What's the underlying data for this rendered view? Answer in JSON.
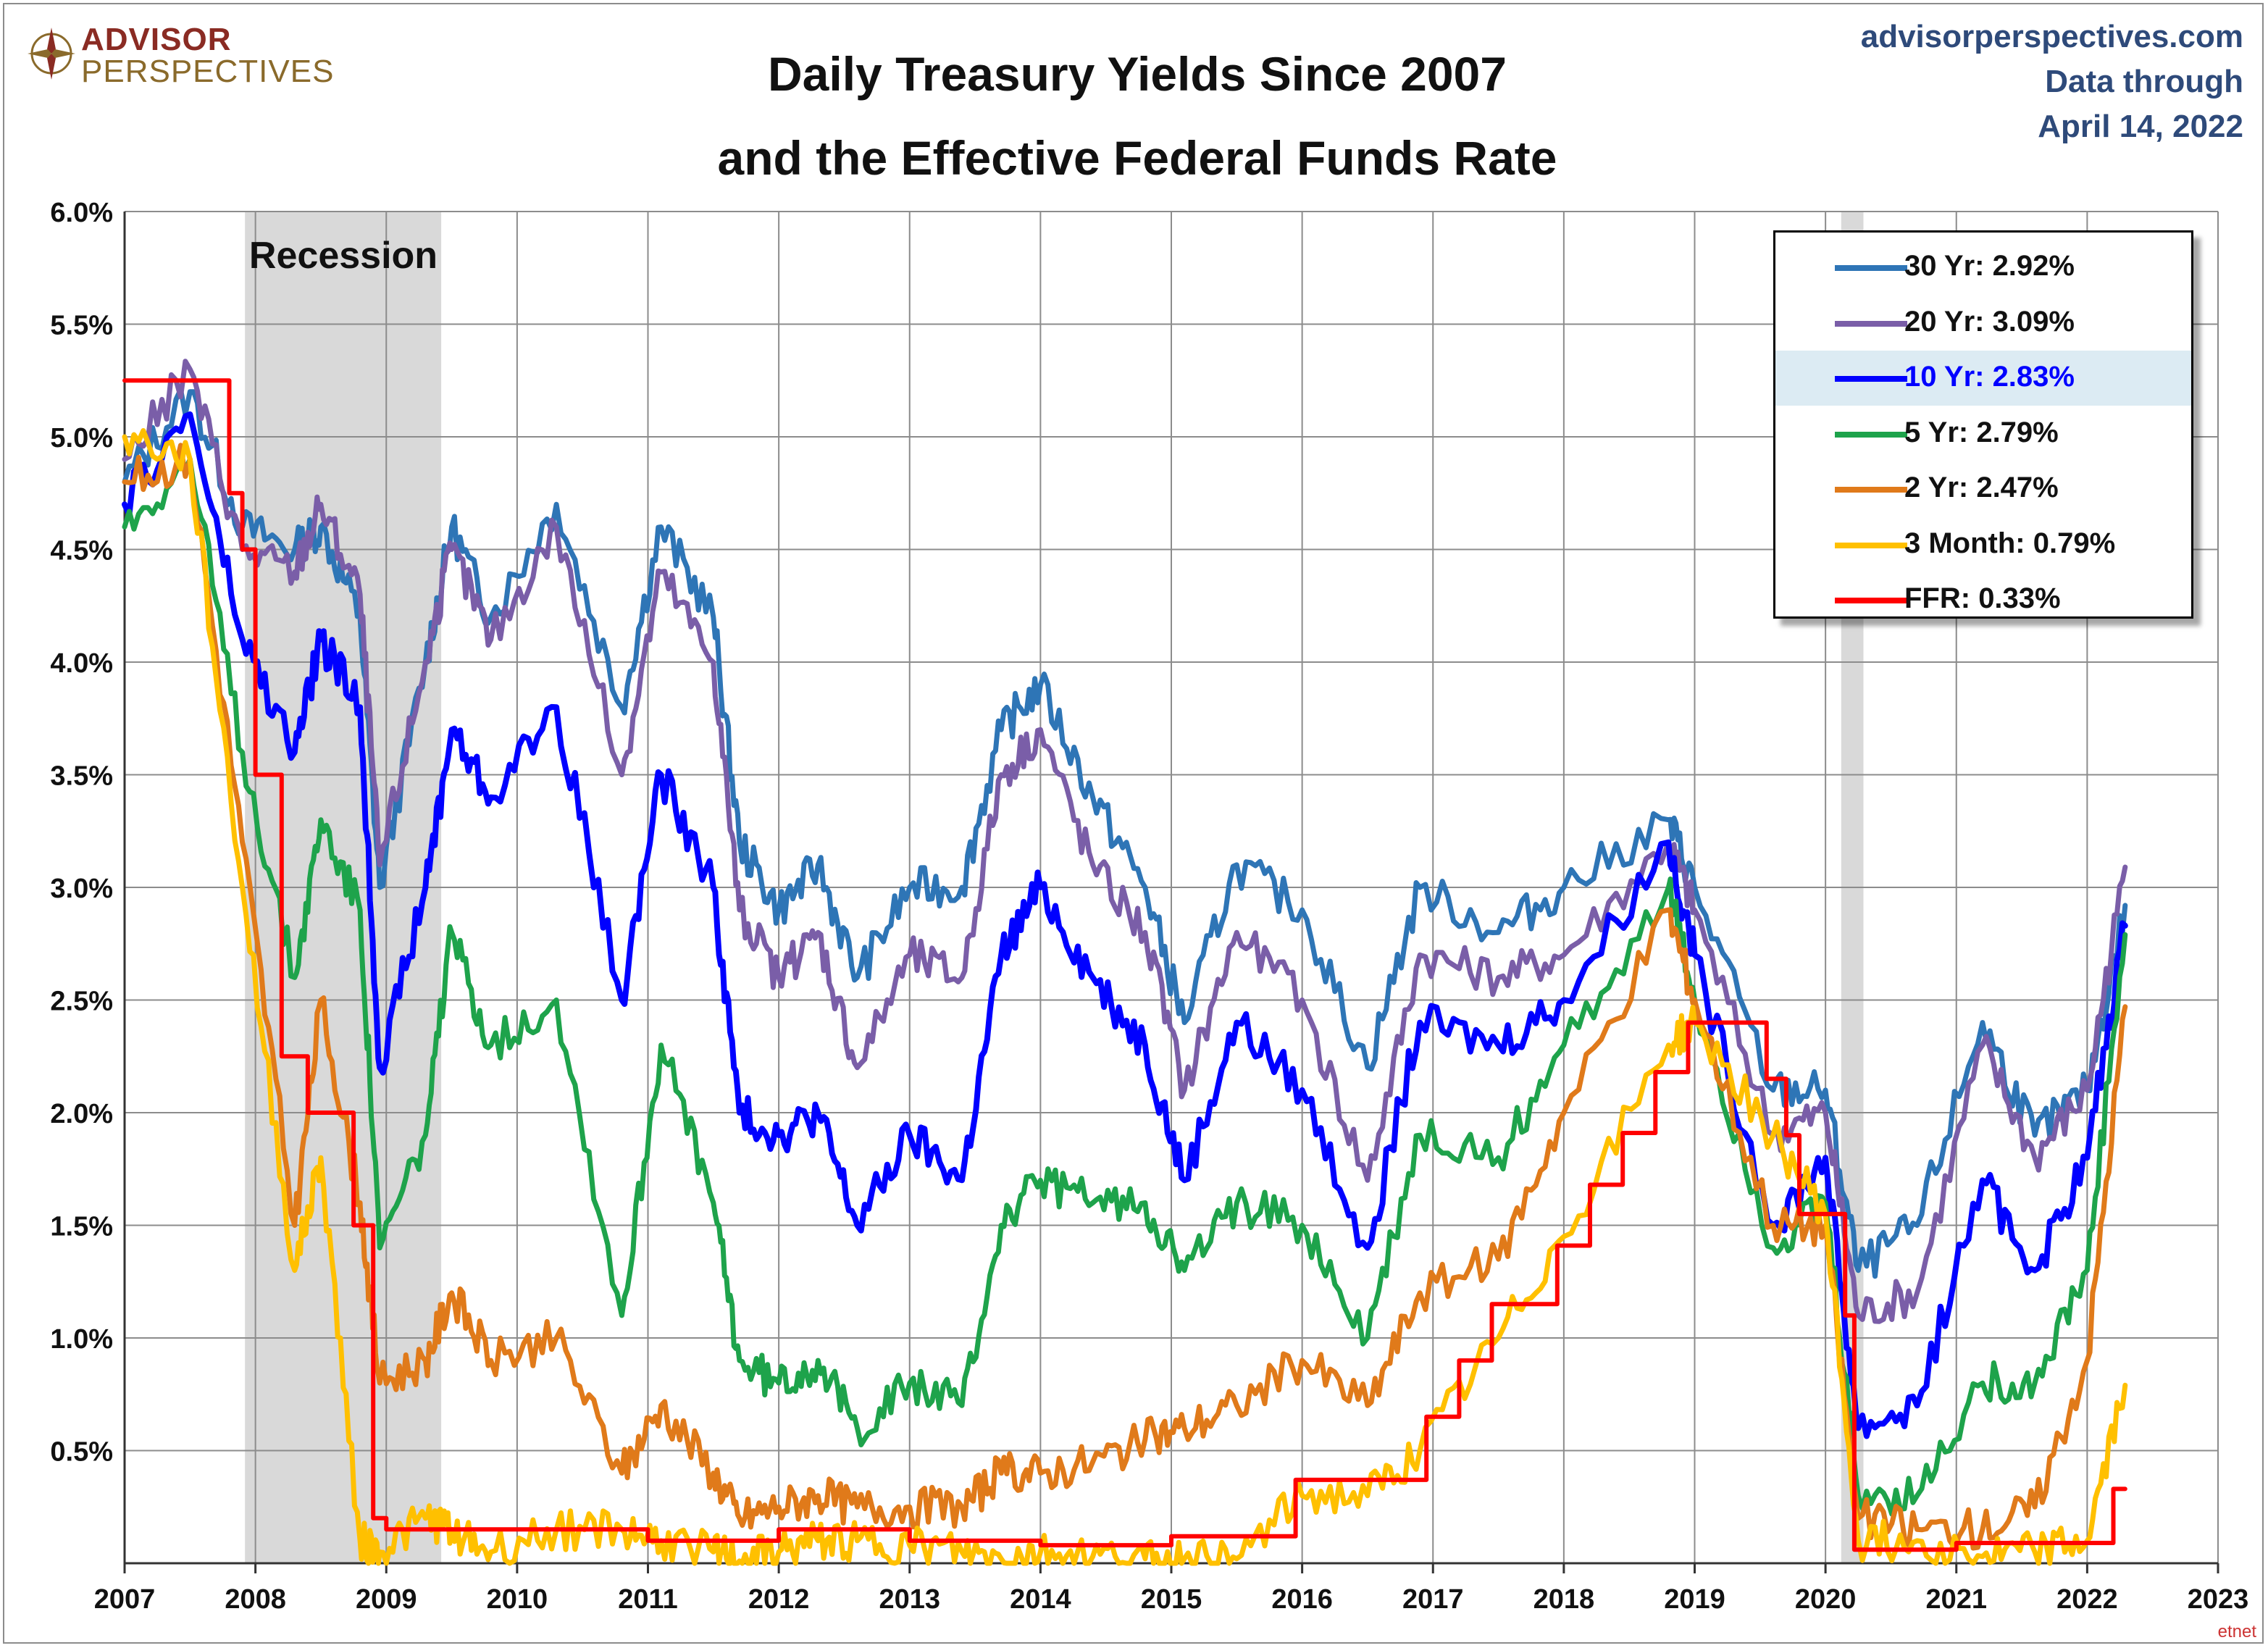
{
  "header": {
    "logo_line1": "ADVISOR",
    "logo_line2": "PERSPECTIVES",
    "title_line1": "Daily Treasury Yields Since 2007",
    "title_line2": "and the Effective Federal Funds Rate",
    "site": "advisorperspectives.com",
    "data_through_line1": "Data through",
    "data_through_line2": "April 14, 2022"
  },
  "chart_data": {
    "type": "line",
    "title": "Daily Treasury Yields Since 2007 and the Effective Federal Funds Rate",
    "xlabel": "",
    "ylabel": "",
    "xlim": [
      2007,
      2023
    ],
    "ylim": [
      0,
      6
    ],
    "x_ticks": [
      "2007",
      "2008",
      "2009",
      "2010",
      "2011",
      "2012",
      "2013",
      "2014",
      "2015",
      "2016",
      "2017",
      "2018",
      "2019",
      "2020",
      "2021",
      "2022",
      "2023"
    ],
    "y_ticks": [
      "0.5%",
      "1.0%",
      "1.5%",
      "2.0%",
      "2.5%",
      "3.0%",
      "3.5%",
      "4.0%",
      "4.5%",
      "5.0%",
      "5.5%",
      "6.0%"
    ],
    "grid": true,
    "legend_position": "top-right",
    "recessions": [
      {
        "label": "Recession",
        "start": 2007.92,
        "end": 2009.42
      },
      {
        "label": "",
        "start": 2020.12,
        "end": 2020.29
      }
    ],
    "series": [
      {
        "name": "30 Yr: 2.92%",
        "color": "#2e75b6",
        "width": 7,
        "points": [
          [
            2007.0,
            4.8
          ],
          [
            2007.5,
            5.2
          ],
          [
            2007.9,
            4.6
          ],
          [
            2008.3,
            4.5
          ],
          [
            2008.5,
            4.6
          ],
          [
            2008.8,
            4.2
          ],
          [
            2008.95,
            3.0
          ],
          [
            2009.3,
            4.0
          ],
          [
            2009.5,
            4.6
          ],
          [
            2009.8,
            4.2
          ],
          [
            2010.3,
            4.7
          ],
          [
            2010.8,
            3.8
          ],
          [
            2011.1,
            4.6
          ],
          [
            2011.5,
            4.2
          ],
          [
            2011.7,
            3.2
          ],
          [
            2012.0,
            2.9
          ],
          [
            2012.3,
            3.1
          ],
          [
            2012.6,
            2.6
          ],
          [
            2013.0,
            3.0
          ],
          [
            2013.4,
            3.0
          ],
          [
            2013.7,
            3.7
          ],
          [
            2014.0,
            3.9
          ],
          [
            2014.4,
            3.4
          ],
          [
            2014.8,
            3.0
          ],
          [
            2015.1,
            2.4
          ],
          [
            2015.5,
            3.1
          ],
          [
            2016.0,
            2.9
          ],
          [
            2016.5,
            2.2
          ],
          [
            2016.9,
            3.0
          ],
          [
            2017.5,
            2.8
          ],
          [
            2018.0,
            3.0
          ],
          [
            2018.8,
            3.3
          ],
          [
            2019.0,
            3.0
          ],
          [
            2019.6,
            2.1
          ],
          [
            2020.0,
            2.1
          ],
          [
            2020.25,
            1.3
          ],
          [
            2020.7,
            1.5
          ],
          [
            2021.2,
            2.4
          ],
          [
            2021.6,
            1.9
          ],
          [
            2022.0,
            2.1
          ],
          [
            2022.29,
            2.92
          ]
        ]
      },
      {
        "name": "20 Yr: 3.09%",
        "color": "#7a5ea8",
        "width": 7,
        "points": [
          [
            2007.0,
            4.9
          ],
          [
            2007.5,
            5.3
          ],
          [
            2007.9,
            4.5
          ],
          [
            2008.3,
            4.4
          ],
          [
            2008.5,
            4.7
          ],
          [
            2008.8,
            4.3
          ],
          [
            2008.95,
            3.1
          ],
          [
            2009.3,
            4.0
          ],
          [
            2009.5,
            4.5
          ],
          [
            2009.8,
            4.1
          ],
          [
            2010.3,
            4.6
          ],
          [
            2010.8,
            3.5
          ],
          [
            2011.1,
            4.4
          ],
          [
            2011.5,
            4.0
          ],
          [
            2011.7,
            2.9
          ],
          [
            2012.0,
            2.6
          ],
          [
            2012.3,
            2.8
          ],
          [
            2012.6,
            2.2
          ],
          [
            2013.0,
            2.7
          ],
          [
            2013.4,
            2.6
          ],
          [
            2013.7,
            3.5
          ],
          [
            2014.0,
            3.7
          ],
          [
            2014.4,
            3.1
          ],
          [
            2014.8,
            2.8
          ],
          [
            2015.1,
            2.1
          ],
          [
            2015.5,
            2.8
          ],
          [
            2016.0,
            2.5
          ],
          [
            2016.5,
            1.7
          ],
          [
            2016.9,
            2.7
          ],
          [
            2017.5,
            2.6
          ],
          [
            2018.0,
            2.7
          ],
          [
            2018.8,
            3.2
          ],
          [
            2019.0,
            2.9
          ],
          [
            2019.6,
            1.9
          ],
          [
            2020.0,
            2.0
          ],
          [
            2020.25,
            1.1
          ],
          [
            2020.7,
            1.2
          ],
          [
            2021.2,
            2.3
          ],
          [
            2021.6,
            1.8
          ],
          [
            2022.0,
            2.1
          ],
          [
            2022.29,
            3.09
          ]
        ]
      },
      {
        "name": "10 Yr: 2.83%",
        "color": "#0000ff",
        "width": 8,
        "points": [
          [
            2007.0,
            4.7
          ],
          [
            2007.5,
            5.1
          ],
          [
            2007.9,
            4.1
          ],
          [
            2008.3,
            3.6
          ],
          [
            2008.5,
            4.1
          ],
          [
            2008.8,
            3.8
          ],
          [
            2008.95,
            2.2
          ],
          [
            2009.3,
            3.0
          ],
          [
            2009.5,
            3.7
          ],
          [
            2009.8,
            3.4
          ],
          [
            2010.3,
            3.8
          ],
          [
            2010.8,
            2.5
          ],
          [
            2011.1,
            3.5
          ],
          [
            2011.5,
            3.0
          ],
          [
            2011.7,
            2.0
          ],
          [
            2012.0,
            1.9
          ],
          [
            2012.3,
            2.0
          ],
          [
            2012.6,
            1.5
          ],
          [
            2013.0,
            1.9
          ],
          [
            2013.4,
            1.7
          ],
          [
            2013.7,
            2.7
          ],
          [
            2014.0,
            3.0
          ],
          [
            2014.4,
            2.6
          ],
          [
            2014.8,
            2.3
          ],
          [
            2015.1,
            1.7
          ],
          [
            2015.5,
            2.4
          ],
          [
            2016.0,
            2.1
          ],
          [
            2016.5,
            1.4
          ],
          [
            2016.9,
            2.4
          ],
          [
            2017.5,
            2.3
          ],
          [
            2018.0,
            2.5
          ],
          [
            2018.8,
            3.2
          ],
          [
            2019.0,
            2.7
          ],
          [
            2019.6,
            1.5
          ],
          [
            2020.0,
            1.8
          ],
          [
            2020.25,
            0.6
          ],
          [
            2020.7,
            0.7
          ],
          [
            2021.2,
            1.7
          ],
          [
            2021.6,
            1.3
          ],
          [
            2022.0,
            1.8
          ],
          [
            2022.29,
            2.83
          ]
        ]
      },
      {
        "name": "5 Yr: 2.79%",
        "color": "#1ea34b",
        "width": 7,
        "points": [
          [
            2007.0,
            4.6
          ],
          [
            2007.5,
            4.9
          ],
          [
            2007.9,
            3.6
          ],
          [
            2008.3,
            2.6
          ],
          [
            2008.5,
            3.3
          ],
          [
            2008.8,
            2.9
          ],
          [
            2008.95,
            1.4
          ],
          [
            2009.3,
            1.9
          ],
          [
            2009.5,
            2.8
          ],
          [
            2009.8,
            2.3
          ],
          [
            2010.3,
            2.5
          ],
          [
            2010.8,
            1.1
          ],
          [
            2011.1,
            2.3
          ],
          [
            2011.5,
            1.6
          ],
          [
            2011.7,
            0.9
          ],
          [
            2012.0,
            0.8
          ],
          [
            2012.3,
            0.9
          ],
          [
            2012.6,
            0.6
          ],
          [
            2013.0,
            0.8
          ],
          [
            2013.4,
            0.7
          ],
          [
            2013.7,
            1.5
          ],
          [
            2014.0,
            1.7
          ],
          [
            2014.4,
            1.6
          ],
          [
            2014.8,
            1.6
          ],
          [
            2015.1,
            1.3
          ],
          [
            2015.5,
            1.6
          ],
          [
            2016.0,
            1.5
          ],
          [
            2016.5,
            1.0
          ],
          [
            2016.9,
            1.9
          ],
          [
            2017.5,
            1.8
          ],
          [
            2018.0,
            2.3
          ],
          [
            2018.8,
            3.0
          ],
          [
            2019.0,
            2.5
          ],
          [
            2019.6,
            1.4
          ],
          [
            2020.0,
            1.6
          ],
          [
            2020.25,
            0.3
          ],
          [
            2020.7,
            0.3
          ],
          [
            2021.2,
            0.8
          ],
          [
            2021.6,
            0.8
          ],
          [
            2022.0,
            1.3
          ],
          [
            2022.29,
            2.79
          ]
        ]
      },
      {
        "name": "2 Yr: 2.47%",
        "color": "#e07a1a",
        "width": 7,
        "points": [
          [
            2007.0,
            4.8
          ],
          [
            2007.5,
            4.9
          ],
          [
            2007.9,
            3.2
          ],
          [
            2008.3,
            1.5
          ],
          [
            2008.5,
            2.5
          ],
          [
            2008.8,
            1.6
          ],
          [
            2008.95,
            0.8
          ],
          [
            2009.3,
            0.9
          ],
          [
            2009.5,
            1.2
          ],
          [
            2009.8,
            0.9
          ],
          [
            2010.3,
            1.0
          ],
          [
            2010.8,
            0.4
          ],
          [
            2011.1,
            0.7
          ],
          [
            2011.5,
            0.4
          ],
          [
            2011.7,
            0.2
          ],
          [
            2012.0,
            0.25
          ],
          [
            2012.3,
            0.3
          ],
          [
            2012.6,
            0.25
          ],
          [
            2013.0,
            0.25
          ],
          [
            2013.4,
            0.25
          ],
          [
            2013.7,
            0.4
          ],
          [
            2014.0,
            0.4
          ],
          [
            2014.4,
            0.45
          ],
          [
            2014.8,
            0.55
          ],
          [
            2015.1,
            0.6
          ],
          [
            2015.5,
            0.7
          ],
          [
            2016.0,
            0.9
          ],
          [
            2016.5,
            0.7
          ],
          [
            2016.9,
            1.2
          ],
          [
            2017.5,
            1.35
          ],
          [
            2018.0,
            2.0
          ],
          [
            2018.8,
            2.9
          ],
          [
            2019.0,
            2.5
          ],
          [
            2019.6,
            1.5
          ],
          [
            2020.0,
            1.5
          ],
          [
            2020.25,
            0.2
          ],
          [
            2020.7,
            0.15
          ],
          [
            2021.2,
            0.15
          ],
          [
            2021.6,
            0.25
          ],
          [
            2022.0,
            0.9
          ],
          [
            2022.29,
            2.47
          ]
        ]
      },
      {
        "name": "3 Month: 0.79%",
        "color": "#ffc000",
        "width": 7,
        "points": [
          [
            2007.0,
            5.0
          ],
          [
            2007.5,
            4.9
          ],
          [
            2007.9,
            3.0
          ],
          [
            2008.3,
            1.3
          ],
          [
            2008.5,
            1.8
          ],
          [
            2008.8,
            0.1
          ],
          [
            2008.95,
            0.05
          ],
          [
            2009.3,
            0.2
          ],
          [
            2009.5,
            0.15
          ],
          [
            2009.8,
            0.05
          ],
          [
            2010.3,
            0.15
          ],
          [
            2010.8,
            0.15
          ],
          [
            2011.1,
            0.1
          ],
          [
            2011.5,
            0.05
          ],
          [
            2011.7,
            0.01
          ],
          [
            2012.0,
            0.05
          ],
          [
            2012.3,
            0.1
          ],
          [
            2012.6,
            0.1
          ],
          [
            2013.0,
            0.08
          ],
          [
            2013.4,
            0.05
          ],
          [
            2013.7,
            0.02
          ],
          [
            2014.0,
            0.05
          ],
          [
            2014.4,
            0.03
          ],
          [
            2014.8,
            0.02
          ],
          [
            2015.1,
            0.02
          ],
          [
            2015.5,
            0.02
          ],
          [
            2016.0,
            0.3
          ],
          [
            2016.5,
            0.3
          ],
          [
            2016.9,
            0.5
          ],
          [
            2017.5,
            1.0
          ],
          [
            2018.0,
            1.45
          ],
          [
            2018.8,
            2.3
          ],
          [
            2019.0,
            2.4
          ],
          [
            2019.6,
            1.9
          ],
          [
            2020.0,
            1.55
          ],
          [
            2020.25,
            0.1
          ],
          [
            2020.7,
            0.1
          ],
          [
            2021.2,
            0.03
          ],
          [
            2021.6,
            0.05
          ],
          [
            2022.0,
            0.1
          ],
          [
            2022.29,
            0.79
          ]
        ]
      },
      {
        "name": "FFR: 0.33%",
        "color": "#ff0000",
        "width": 6,
        "step": true,
        "points": [
          [
            2007.0,
            5.25
          ],
          [
            2007.7,
            5.25
          ],
          [
            2007.8,
            4.75
          ],
          [
            2007.9,
            4.5
          ],
          [
            2008.0,
            3.5
          ],
          [
            2008.2,
            2.25
          ],
          [
            2008.4,
            2.0
          ],
          [
            2008.75,
            1.5
          ],
          [
            2008.9,
            0.2
          ],
          [
            2009.0,
            0.15
          ],
          [
            2010.0,
            0.15
          ],
          [
            2011.0,
            0.1
          ],
          [
            2012.0,
            0.15
          ],
          [
            2013.0,
            0.1
          ],
          [
            2014.0,
            0.08
          ],
          [
            2015.0,
            0.12
          ],
          [
            2015.95,
            0.37
          ],
          [
            2016.95,
            0.65
          ],
          [
            2017.2,
            0.9
          ],
          [
            2017.45,
            1.15
          ],
          [
            2017.95,
            1.41
          ],
          [
            2018.2,
            1.68
          ],
          [
            2018.45,
            1.91
          ],
          [
            2018.7,
            2.18
          ],
          [
            2018.95,
            2.4
          ],
          [
            2019.55,
            2.15
          ],
          [
            2019.7,
            1.9
          ],
          [
            2019.8,
            1.55
          ],
          [
            2020.15,
            1.1
          ],
          [
            2020.22,
            0.06
          ],
          [
            2021.0,
            0.09
          ],
          [
            2022.2,
            0.33
          ],
          [
            2022.29,
            0.33
          ]
        ]
      }
    ]
  },
  "chart_labels": {
    "recession": "Recession"
  },
  "legend": {
    "items": [
      {
        "label": "30 Yr: 2.92%",
        "color": "#2e75b6"
      },
      {
        "label": "20 Yr: 3.09%",
        "color": "#7a5ea8"
      },
      {
        "label": "10 Yr: 2.83%",
        "color": "#0000ff",
        "highlight": true
      },
      {
        "label": "5 Yr: 2.79%",
        "color": "#1ea34b"
      },
      {
        "label": "2 Yr: 2.47%",
        "color": "#e07a1a"
      },
      {
        "label": "3 Month: 0.79%",
        "color": "#ffc000"
      },
      {
        "label": "FFR: 0.33%",
        "color": "#ff0000"
      }
    ]
  },
  "watermark": "etnet"
}
